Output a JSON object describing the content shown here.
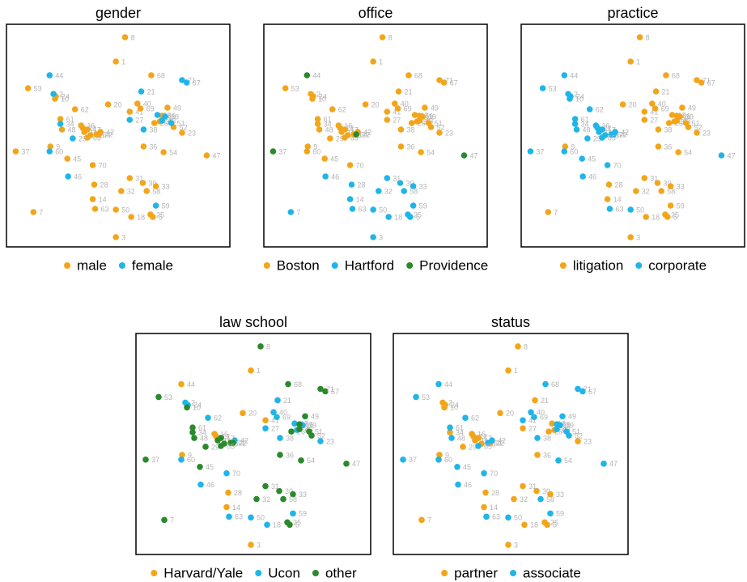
{
  "chart_data": [
    {
      "type": "scatter",
      "title": "gender",
      "xlim": [
        0,
        290
      ],
      "ylim": [
        0,
        275
      ],
      "series": [
        {
          "name": "male",
          "color": "#F3A51A",
          "labels": [
            "1",
            "3",
            "5",
            "7",
            "8",
            "9",
            "10",
            "11",
            "12",
            "14",
            "15",
            "16",
            "17",
            "18",
            "20",
            "22",
            "23",
            "24",
            "25",
            "26",
            "28",
            "30",
            "31",
            "32",
            "33",
            "35",
            "36",
            "37",
            "40",
            "41",
            "42",
            "45",
            "47",
            "48",
            "49",
            "50",
            "52",
            "53",
            "54",
            "58",
            "61",
            "62",
            "63",
            "64",
            "65",
            "66",
            "68",
            "69",
            "70"
          ],
          "x": [
            142,
            142,
            190,
            35,
            154,
            57,
            63,
            101,
            99,
            112,
            109,
            97,
            105,
            162,
            132,
            120,
            228,
            64,
            187,
            192,
            114,
            177,
            160,
            149,
            194,
            199,
            178,
            12,
            170,
            160,
            122,
            79,
            260,
            72,
            209,
            142,
            217,
            28,
            204,
            182,
            70,
            89,
            115,
            117,
            105,
            202,
            188,
            174,
            112
          ],
          "values": [
            229,
            12,
            37,
            43,
            259,
            124,
            183,
            142,
            147,
            59,
            138,
            150,
            145,
            37,
            176,
            139,
            141,
            186,
            40,
            153,
            77,
            79,
            85,
            69,
            75,
            155,
            124,
            118,
            177,
            167,
            142,
            109,
            113,
            145,
            172,
            46,
            148,
            196,
            117,
            69,
            158,
            170,
            47,
            139,
            135,
            162,
            212,
            171,
            101
          ]
        },
        {
          "name": "female",
          "color": "#1FB5E8",
          "labels": [
            "2",
            "13",
            "21",
            "27",
            "29",
            "34",
            "38",
            "39",
            "43",
            "44",
            "46",
            "51",
            "59",
            "60",
            "67",
            "71"
          ],
          "x": [
            61,
            196,
            175,
            160,
            86,
            70,
            178,
            206,
            202,
            56,
            80,
            214,
            194,
            56,
            234,
            228
          ],
          "values": [
            189,
            163,
            192,
            157,
            134,
            152,
            145,
            161,
            156,
            212,
            87,
            153,
            51,
            118,
            203,
            206
          ]
        }
      ]
    },
    {
      "type": "scatter",
      "title": "office",
      "xlim": [
        0,
        290
      ],
      "ylim": [
        0,
        275
      ],
      "series": [
        {
          "name": "Boston",
          "color": "#F3A51A",
          "labels": [
            "1",
            "2",
            "8",
            "9",
            "10",
            "11",
            "12",
            "13",
            "15",
            "16",
            "17",
            "20",
            "21",
            "23",
            "24",
            "26",
            "27",
            "29",
            "34",
            "35",
            "36",
            "38",
            "39",
            "40",
            "41",
            "42",
            "43",
            "45",
            "48",
            "49",
            "51",
            "52",
            "53",
            "54",
            "60",
            "61",
            "62",
            "64",
            "65",
            "66",
            "67",
            "68",
            "69",
            "70",
            "71"
          ],
          "x": [
            142,
            61,
            154,
            57,
            63,
            101,
            99,
            196,
            109,
            97,
            105,
            132,
            175,
            228,
            64,
            192,
            160,
            86,
            70,
            199,
            178,
            178,
            206,
            170,
            160,
            122,
            202,
            79,
            72,
            209,
            214,
            217,
            28,
            204,
            56,
            70,
            89,
            117,
            105,
            202,
            234,
            188,
            174,
            112,
            228
          ],
          "values": [
            229,
            189,
            259,
            124,
            183,
            142,
            147,
            163,
            138,
            150,
            145,
            176,
            192,
            141,
            186,
            153,
            157,
            134,
            152,
            155,
            124,
            145,
            161,
            177,
            167,
            142,
            156,
            109,
            145,
            172,
            153,
            148,
            196,
            117,
            118,
            158,
            170,
            139,
            135,
            162,
            203,
            212,
            171,
            101,
            206
          ]
        },
        {
          "name": "Hartford",
          "color": "#1FB5E8",
          "labels": [
            "3",
            "5",
            "7",
            "14",
            "18",
            "25",
            "28",
            "30",
            "31",
            "32",
            "33",
            "46",
            "50",
            "58",
            "59",
            "63"
          ],
          "x": [
            142,
            190,
            35,
            112,
            162,
            187,
            114,
            177,
            160,
            149,
            194,
            80,
            142,
            182,
            194,
            115
          ],
          "values": [
            12,
            37,
            43,
            59,
            37,
            40,
            77,
            79,
            85,
            69,
            75,
            87,
            46,
            69,
            51,
            47
          ]
        },
        {
          "name": "Providence",
          "color": "#2A8A2A",
          "labels": [
            "22",
            "37",
            "44",
            "47"
          ],
          "x": [
            120,
            12,
            56,
            260
          ],
          "values": [
            139,
            118,
            212,
            113
          ]
        }
      ]
    },
    {
      "type": "scatter",
      "title": "practice",
      "xlim": [
        0,
        290
      ],
      "ylim": [
        0,
        275
      ],
      "series": [
        {
          "name": "litigation",
          "color": "#F3A51A",
          "labels": [
            "1",
            "3",
            "5",
            "7",
            "8",
            "9",
            "13",
            "14",
            "18",
            "20",
            "21",
            "23",
            "25",
            "26",
            "27",
            "28",
            "30",
            "31",
            "32",
            "33",
            "35",
            "36",
            "38",
            "39",
            "40",
            "41",
            "43",
            "49",
            "51",
            "52",
            "54",
            "58",
            "59",
            "66",
            "67",
            "68",
            "69",
            "71"
          ],
          "x": [
            142,
            142,
            190,
            35,
            154,
            57,
            196,
            112,
            162,
            132,
            175,
            228,
            187,
            192,
            160,
            114,
            177,
            160,
            149,
            194,
            199,
            178,
            178,
            206,
            170,
            160,
            202,
            209,
            214,
            217,
            204,
            182,
            194,
            202,
            234,
            188,
            174,
            228
          ],
          "values": [
            229,
            12,
            37,
            43,
            259,
            124,
            163,
            59,
            37,
            176,
            192,
            141,
            40,
            153,
            157,
            77,
            79,
            85,
            69,
            75,
            155,
            124,
            145,
            161,
            177,
            167,
            156,
            172,
            153,
            148,
            117,
            69,
            51,
            162,
            203,
            212,
            171,
            206
          ]
        },
        {
          "name": "corporate",
          "color": "#1FB5E8",
          "labels": [
            "2",
            "10",
            "11",
            "12",
            "15",
            "16",
            "17",
            "22",
            "24",
            "29",
            "34",
            "37",
            "42",
            "44",
            "45",
            "46",
            "47",
            "48",
            "50",
            "53",
            "60",
            "61",
            "62",
            "63",
            "64",
            "65",
            "70"
          ],
          "x": [
            61,
            63,
            101,
            99,
            109,
            97,
            105,
            120,
            64,
            86,
            70,
            12,
            122,
            56,
            79,
            80,
            260,
            72,
            142,
            28,
            56,
            70,
            89,
            115,
            117,
            105,
            112
          ],
          "values": [
            189,
            183,
            142,
            147,
            138,
            150,
            145,
            139,
            186,
            134,
            152,
            118,
            142,
            212,
            109,
            87,
            113,
            145,
            46,
            196,
            118,
            158,
            170,
            47,
            139,
            135,
            101
          ]
        }
      ]
    },
    {
      "type": "scatter",
      "title": "law school",
      "xlim": [
        0,
        290
      ],
      "ylim": [
        0,
        275
      ],
      "series": [
        {
          "name": "Harvard/Yale",
          "color": "#F3A51A",
          "labels": [
            "1",
            "3",
            "9",
            "12",
            "14",
            "16",
            "20",
            "28",
            "41",
            "44"
          ],
          "x": [
            142,
            142,
            57,
            99,
            112,
            97,
            132,
            114,
            160,
            56
          ],
          "values": [
            229,
            12,
            124,
            147,
            59,
            150,
            176,
            77,
            167,
            212
          ]
        },
        {
          "name": "Ucon",
          "color": "#1FB5E8",
          "labels": [
            "2",
            "13",
            "18",
            "21",
            "23",
            "24",
            "27",
            "35",
            "38",
            "39",
            "40",
            "42",
            "46",
            "50",
            "59",
            "60",
            "62",
            "63",
            "69",
            "70"
          ],
          "x": [
            61,
            196,
            162,
            175,
            228,
            64,
            160,
            199,
            178,
            206,
            170,
            122,
            80,
            142,
            194,
            56,
            89,
            115,
            174,
            112
          ],
          "values": [
            189,
            163,
            37,
            192,
            141,
            186,
            157,
            155,
            145,
            161,
            177,
            142,
            87,
            46,
            51,
            118,
            170,
            47,
            171,
            101
          ]
        },
        {
          "name": "other",
          "color": "#2A8A2A",
          "labels": [
            "5",
            "7",
            "8",
            "10",
            "11",
            "15",
            "17",
            "22",
            "25",
            "26",
            "29",
            "30",
            "31",
            "32",
            "33",
            "34",
            "36",
            "37",
            "43",
            "45",
            "47",
            "48",
            "49",
            "51",
            "52",
            "53",
            "54",
            "58",
            "61",
            "64",
            "65",
            "66",
            "67",
            "68",
            "71"
          ],
          "x": [
            190,
            35,
            154,
            63,
            101,
            109,
            105,
            120,
            187,
            192,
            86,
            177,
            160,
            149,
            194,
            70,
            178,
            12,
            202,
            79,
            260,
            72,
            209,
            214,
            217,
            28,
            204,
            182,
            70,
            117,
            105,
            202,
            234,
            188,
            228
          ],
          "values": [
            37,
            43,
            259,
            183,
            142,
            138,
            145,
            139,
            40,
            153,
            134,
            79,
            85,
            69,
            75,
            152,
            124,
            118,
            156,
            109,
            113,
            145,
            172,
            153,
            148,
            196,
            117,
            69,
            158,
            139,
            135,
            162,
            203,
            212,
            206
          ]
        }
      ]
    },
    {
      "type": "scatter",
      "title": "status",
      "xlim": [
        0,
        290
      ],
      "ylim": [
        0,
        275
      ],
      "series": [
        {
          "name": "partner",
          "color": "#F3A51A",
          "labels": [
            "1",
            "2",
            "3",
            "5",
            "7",
            "8",
            "9",
            "10",
            "11",
            "12",
            "13",
            "14",
            "15",
            "16",
            "17",
            "18",
            "20",
            "21",
            "22",
            "23",
            "24",
            "25",
            "26",
            "27",
            "28",
            "29",
            "30",
            "31",
            "32",
            "33",
            "34",
            "35",
            "36"
          ],
          "x": [
            142,
            61,
            142,
            190,
            35,
            154,
            57,
            63,
            101,
            99,
            196,
            112,
            109,
            97,
            105,
            162,
            132,
            175,
            120,
            228,
            64,
            187,
            192,
            160,
            114,
            86,
            177,
            160,
            149,
            194,
            70,
            199,
            178
          ],
          "values": [
            229,
            189,
            12,
            37,
            43,
            259,
            124,
            183,
            142,
            147,
            163,
            59,
            138,
            150,
            145,
            37,
            176,
            192,
            139,
            141,
            186,
            40,
            153,
            157,
            77,
            134,
            79,
            85,
            69,
            75,
            152,
            155,
            124
          ]
        },
        {
          "name": "associate",
          "color": "#1FB5E8",
          "labels": [
            "37",
            "38",
            "39",
            "40",
            "41",
            "42",
            "43",
            "44",
            "45",
            "46",
            "47",
            "48",
            "49",
            "50",
            "51",
            "52",
            "53",
            "54",
            "58",
            "59",
            "60",
            "61",
            "62",
            "63",
            "64",
            "65",
            "66",
            "67",
            "68",
            "69",
            "70",
            "71"
          ],
          "x": [
            12,
            178,
            206,
            170,
            160,
            122,
            202,
            56,
            79,
            80,
            260,
            72,
            209,
            142,
            214,
            217,
            28,
            204,
            182,
            194,
            56,
            70,
            89,
            115,
            117,
            105,
            202,
            234,
            188,
            174,
            112,
            228
          ],
          "values": [
            118,
            145,
            161,
            177,
            167,
            142,
            156,
            212,
            109,
            87,
            113,
            145,
            172,
            46,
            153,
            148,
            196,
            117,
            69,
            51,
            118,
            158,
            170,
            47,
            139,
            135,
            162,
            203,
            212,
            171,
            101,
            206
          ]
        }
      ]
    }
  ]
}
